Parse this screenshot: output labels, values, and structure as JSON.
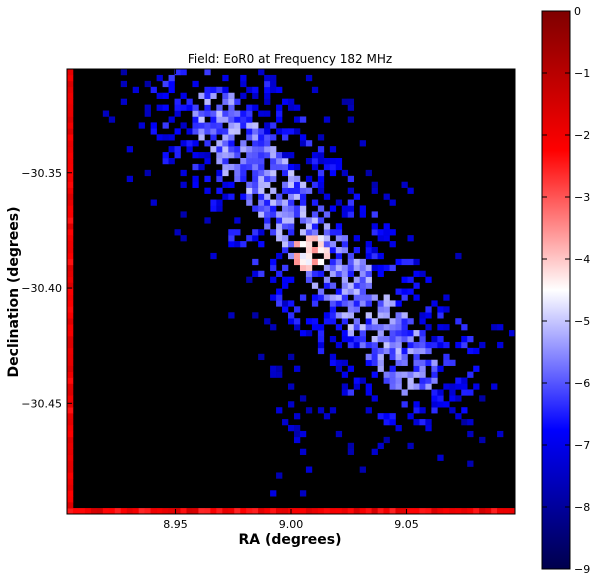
{
  "chart_data": {
    "type": "heatmap",
    "title": "Field: EoR0 at Frequency 182 MHz",
    "xlabel": "RA (degrees)",
    "ylabel": "Declination (degrees)",
    "xlim": [
      8.903,
      9.097
    ],
    "ylim": [
      -30.498,
      -30.305
    ],
    "x_ticks": [
      8.95,
      9.0,
      9.05
    ],
    "x_tick_labels": [
      "8.95",
      "9.00",
      "9.05"
    ],
    "y_ticks": [
      -30.35,
      -30.4,
      -30.45
    ],
    "y_tick_labels": [
      "−30.35",
      "−30.40",
      "−30.45"
    ],
    "background": "#000000",
    "colorbar": {
      "colormap": "seismic",
      "range": [
        -9,
        0
      ],
      "ticks": [
        0,
        -1,
        -2,
        -3,
        -4,
        -5,
        -6,
        -7,
        -8,
        -9
      ],
      "tick_labels": [
        "0",
        "−1",
        "−2",
        "−3",
        "−4",
        "−5",
        "−6",
        "−7",
        "−8",
        "−9"
      ],
      "colors": [
        "#00004c",
        "#0000ff",
        "#ffffff",
        "#ff0000",
        "#7f0000"
      ]
    },
    "bins": 75,
    "features": [
      {
        "feature": "elongated source along NW-SE diagonal",
        "ra_range": [
          8.97,
          9.06
        ],
        "dec_range": [
          -30.43,
          -30.33
        ],
        "value_range": [
          -7,
          -5
        ]
      },
      {
        "feature": "bright core",
        "ra": 9.01,
        "dec": -30.385,
        "value_range": [
          -4,
          -3
        ]
      },
      {
        "feature": "left edge strip",
        "ra": 8.904,
        "value": -2
      },
      {
        "feature": "bottom edge strip",
        "dec": -30.497,
        "value": -2
      },
      {
        "feature": "faint tail to south",
        "ra_range": [
          8.99,
          9.01
        ],
        "dec_range": [
          -30.49,
          -30.43
        ],
        "value_range": [
          -8,
          -7
        ]
      }
    ]
  }
}
